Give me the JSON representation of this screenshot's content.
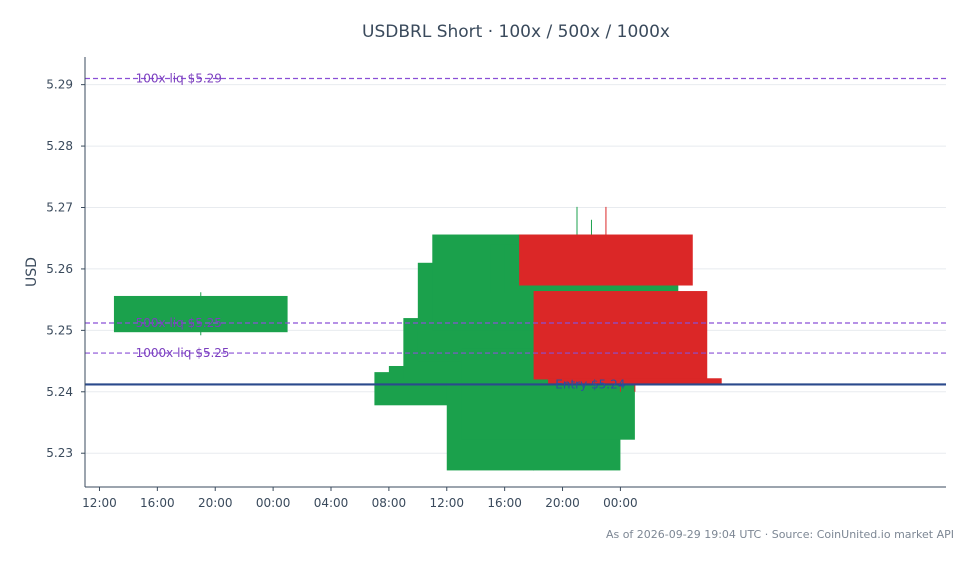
{
  "chart_data": {
    "type": "candlestick",
    "title": "USDBRL Short · 100x / 500x / 1000x",
    "ylabel": "USD",
    "xlabel": "",
    "ylim": [
      5.2245,
      5.2945
    ],
    "yticks": [
      "5.23",
      "5.24",
      "5.25",
      "5.26",
      "5.27",
      "5.28",
      "5.29"
    ],
    "x_range_hours": [
      -1,
      58.5
    ],
    "x_ticks": [
      {
        "label": "12:00",
        "hour": 0
      },
      {
        "label": "16:00",
        "hour": 4
      },
      {
        "label": "20:00",
        "hour": 8
      },
      {
        "label": "00:00",
        "hour": 12
      },
      {
        "label": "04:00",
        "hour": 16
      },
      {
        "label": "08:00",
        "hour": 20
      },
      {
        "label": "12:00",
        "hour": 24
      },
      {
        "label": "16:00",
        "hour": 28
      },
      {
        "label": "20:00",
        "hour": 32
      },
      {
        "label": "00:00",
        "hour": 36
      }
    ],
    "candles": [
      {
        "start": 1,
        "end": 13,
        "open": 5.2497,
        "close": 5.2556,
        "high": 5.2562,
        "low": 5.2492
      },
      {
        "start": 19,
        "end": 31,
        "open": 5.2378,
        "close": 5.2432,
        "high": 5.2432,
        "low": 5.2378
      },
      {
        "start": 20,
        "end": 32,
        "open": 5.241,
        "close": 5.2442,
        "high": 5.2442,
        "low": 5.241
      },
      {
        "start": 21,
        "end": 33,
        "open": 5.242,
        "close": 5.252,
        "high": 5.252,
        "low": 5.242
      },
      {
        "start": 22,
        "end": 34,
        "open": 5.245,
        "close": 5.261,
        "high": 5.261,
        "low": 5.245
      },
      {
        "start": 23,
        "end": 35,
        "open": 5.25,
        "close": 5.2656,
        "high": 5.2656,
        "low": 5.25
      },
      {
        "start": 24,
        "end": 36,
        "open": 5.2272,
        "close": 5.242,
        "high": 5.248,
        "low": 5.2272
      },
      {
        "start": 25,
        "end": 37,
        "open": 5.2322,
        "close": 5.247,
        "high": 5.25,
        "low": 5.2322
      },
      {
        "start": 27,
        "end": 39,
        "open": 5.256,
        "close": 5.264,
        "high": 5.2701,
        "low": 5.255
      },
      {
        "start": 28,
        "end": 40,
        "open": 5.256,
        "close": 5.264,
        "high": 5.268,
        "low": 5.255
      },
      {
        "start": 29,
        "end": 41,
        "open": 5.2656,
        "close": 5.2573,
        "high": 5.2701,
        "low": 5.2573
      },
      {
        "start": 30,
        "end": 42,
        "open": 5.2564,
        "close": 5.242,
        "high": 5.2564,
        "low": 5.24
      },
      {
        "start": 31,
        "end": 43,
        "open": 5.2422,
        "close": 5.2412,
        "high": 5.2422,
        "low": 5.24
      }
    ],
    "reference_lines": [
      {
        "label": "100x liq $5.29",
        "value": 5.291,
        "color": "#8a4fd6",
        "style": "dashed"
      },
      {
        "label": "500x liq $5.25",
        "value": 5.2512,
        "color": "#8a4fd6",
        "style": "dashed"
      },
      {
        "label": "1000x liq $5.25",
        "value": 5.2463,
        "color": "#8a4fd6",
        "style": "dashed"
      },
      {
        "label": "Entry $5.24",
        "value": 5.2412,
        "color": "#2b4a8c",
        "style": "solid"
      }
    ],
    "colors": {
      "up": "#1ba14c",
      "down": "#db2727"
    },
    "grid": true
  },
  "footer": "As of 2026-09-29 19:04 UTC · Source: CoinUnited.io market API"
}
